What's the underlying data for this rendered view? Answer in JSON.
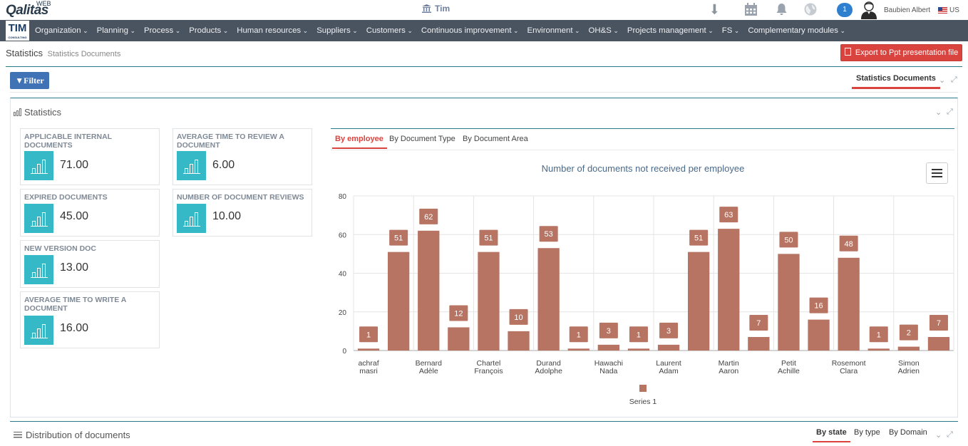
{
  "header": {
    "logo": "Qalitas",
    "logo_sup": "WEB",
    "center_label": "Tim",
    "notification_count": "1",
    "user_name": "Baubien Albert",
    "language": "US"
  },
  "nav": {
    "logo": "TIM",
    "logo_sub": "CONSULTING",
    "items": [
      "Organization",
      "Planning",
      "Process",
      "Products",
      "Human resources",
      "Suppliers",
      "Customers",
      "Continuous improvement",
      "Environment",
      "OH&S",
      "Projects management",
      "FS",
      "Complementary modules"
    ]
  },
  "breadcrumb": {
    "title": "Statistics",
    "sub": "Statistics Documents"
  },
  "actions": {
    "export_label": "Export to Ppt presentation file",
    "filter_label": "Filter"
  },
  "main_tab": "Statistics Documents",
  "stats": {
    "title": "Statistics",
    "kpis": [
      {
        "label": "APPLICABLE INTERNAL DOCUMENTS",
        "value": "71.00"
      },
      {
        "label": "AVERAGE TIME TO REVIEW A DOCUMENT",
        "value": "6.00"
      },
      {
        "label": "EXPIRED DOCUMENTS",
        "value": "45.00"
      },
      {
        "label": "NUMBER OF DOCUMENT REVIEWS",
        "value": "10.00"
      },
      {
        "label": "NEW VERSION DOC",
        "value": "13.00"
      },
      {
        "label": "AVERAGE TIME TO WRITE A DOCUMENT",
        "value": "16.00"
      }
    ]
  },
  "chart_tabs": [
    "By employee",
    "By Document Type",
    "By Document Area"
  ],
  "chart_data": {
    "type": "bar",
    "title": "Number of documents not received per employee",
    "xlabel": "",
    "ylabel": "",
    "ylim": [
      0,
      80
    ],
    "yticks": [
      0,
      20,
      40,
      60,
      80
    ],
    "grid": true,
    "legend": "bottom",
    "color": "#b87462",
    "categories": [
      "achraf masri",
      "",
      "Bernard Adèle",
      "",
      "Chartel François",
      "",
      "Durand Adolphe",
      "",
      "Hawachi Nada",
      "",
      "Laurent Adam",
      "",
      "Martin Aaron",
      "",
      "Petit Achille",
      "",
      "Rosemont Clara",
      "",
      "Simon Adrien",
      ""
    ],
    "series": [
      {
        "name": "Series 1",
        "values": [
          1,
          51,
          62,
          12,
          51,
          10,
          53,
          1,
          3,
          1,
          3,
          51,
          63,
          7,
          50,
          16,
          48,
          1,
          2,
          7
        ]
      }
    ]
  },
  "distribution": {
    "title": "Distribution of documents",
    "tabs": [
      "By state",
      "By type",
      "By Domain"
    ]
  }
}
